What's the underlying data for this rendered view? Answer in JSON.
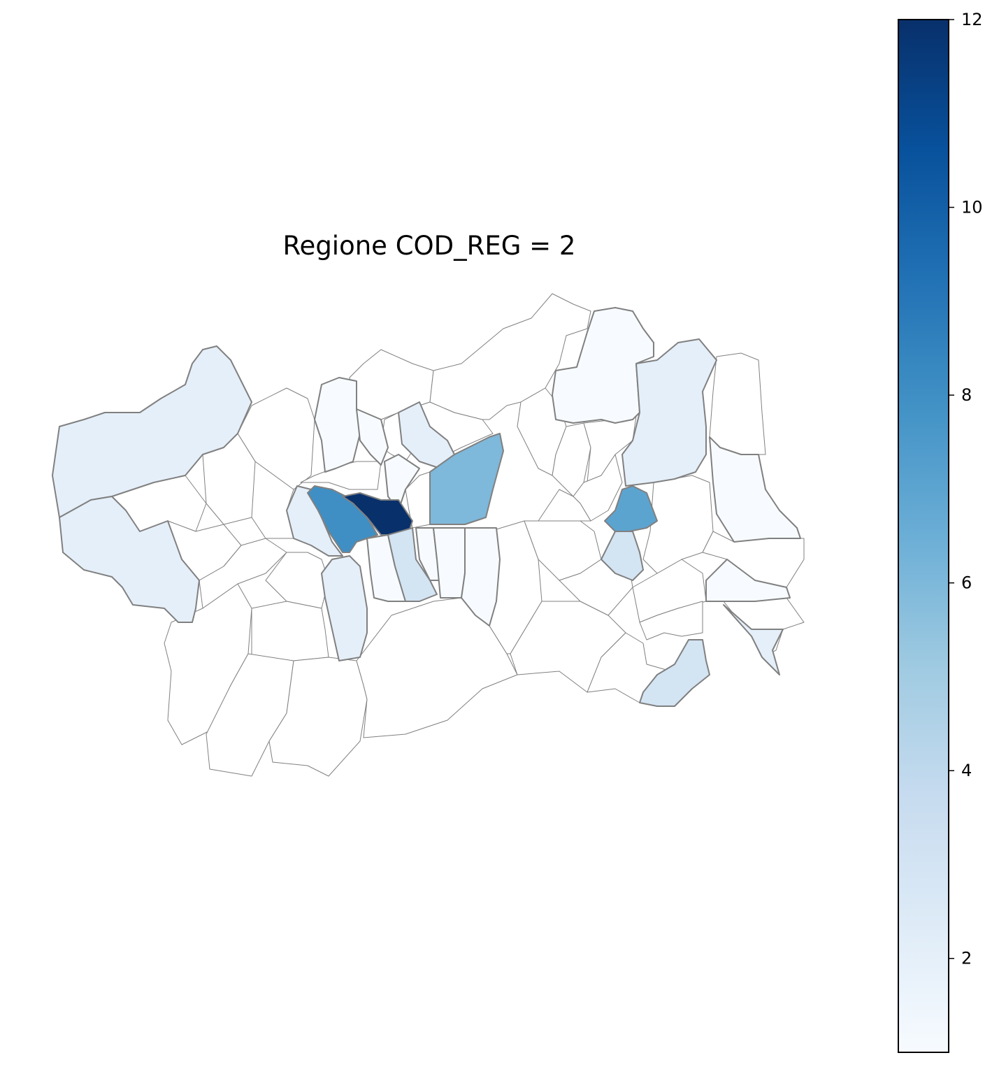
{
  "title": "Regione COD_REG = 2",
  "colorbar": {
    "min": 1,
    "max": 12,
    "ticks": [
      "2",
      "4",
      "6",
      "8",
      "10",
      "12"
    ],
    "colormap": "Blues",
    "stops": [
      "#f7fbff",
      "#deebf7",
      "#c6dbef",
      "#9ecae1",
      "#6baed6",
      "#4292c6",
      "#2171b5",
      "#08519c",
      "#08306b"
    ]
  },
  "map": {
    "outline_color": "#808080",
    "empty_fill": "#ffffff",
    "region_values": {
      "west-north": 2,
      "west-south": 2,
      "north-valley-left": 1,
      "north-valley-mid": 1,
      "center-west-small": 2,
      "center-pale-north": 2,
      "center-west-mid": 8,
      "center-dark": 12,
      "center-strip-a": 1,
      "center-strip-b": 3,
      "center-strip-c": 1,
      "center-strip-d": 1,
      "center-south-west": 2,
      "center-north-east": 6,
      "center-north-small": 1,
      "north-central-east": 1,
      "north-east-big": 2,
      "east-mid-blue": 7,
      "east-small-below": 3,
      "east-far": 1,
      "east-far-south": 1,
      "south-east-pale": 3,
      "south-east-small": 1
    }
  }
}
